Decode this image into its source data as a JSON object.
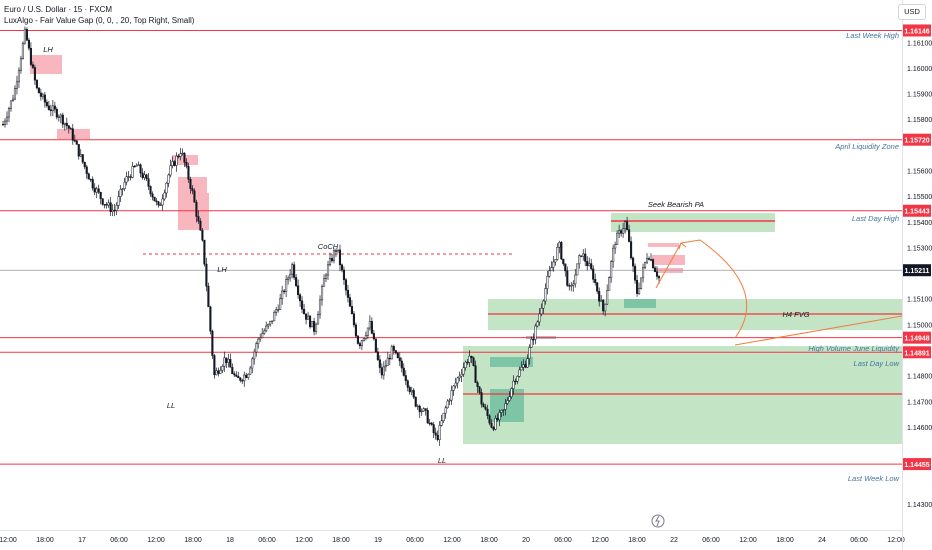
{
  "header": {
    "title": "Euro / U.S. Dollar · 15 · FXCM",
    "indicator": "LuxAlgo - Fair Value Gap (0, 0, , 20, Top Right, Small)"
  },
  "currency": "USD",
  "timezone_icon": "clock-lightning-icon",
  "colors": {
    "level_line": "#f23645",
    "bull_fvg": "#a5d6a7",
    "bull_fvg_dark": "#66bb9a",
    "bear_fvg": "#f7a9b4",
    "candle": "#131722",
    "annotation_text": "#42749e",
    "arrow": "#f47c3c",
    "price_tag": "#131722"
  },
  "chart_data": {
    "type": "candlestick",
    "symbol": "EURUSD",
    "interval": "15",
    "ylim": [
      1.1428,
      1.1622
    ],
    "y_ticks": [
      "1.16100",
      "1.16000",
      "1.15900",
      "1.15800",
      "1.15600",
      "1.15500",
      "1.15400",
      "1.15300",
      "1.15100",
      "1.15000",
      "1.14800",
      "1.14700",
      "1.14600",
      "1.14300"
    ],
    "x_ticks": [
      "12:00",
      "18:00",
      "17",
      "06:00",
      "12:00",
      "18:00",
      "18",
      "06:00",
      "12:00",
      "18:00",
      "19",
      "06:00",
      "12:00",
      "18:00",
      "20",
      "06:00",
      "12:00",
      "18:00",
      "22",
      "06:00",
      "12:00",
      "18:00",
      "24",
      "06:00",
      "12:00"
    ],
    "levels": [
      {
        "name": "Last Week High",
        "price": 1.16146,
        "label": "1.16146"
      },
      {
        "name": "April Liquidity Zone",
        "price": 1.1572,
        "label": "1.15720"
      },
      {
        "name": "Last Day High",
        "price": 1.15443,
        "label": "1.15443"
      },
      {
        "name": "High Volume June Liquidity",
        "price": 1.14948,
        "label": "1.14948"
      },
      {
        "name": "Last Day Low",
        "price": 1.14891,
        "label": "1.14891"
      },
      {
        "name": "Last Week Low",
        "price": 1.14455,
        "label": "1.14455"
      }
    ],
    "current_price": {
      "price": 1.15211,
      "label": "1.15211"
    },
    "close_path": [
      1.1578,
      1.159,
      1.1614,
      1.1592,
      1.1585,
      1.1582,
      1.1576,
      1.1565,
      1.1555,
      1.1548,
      1.1544,
      1.1556,
      1.1562,
      1.1555,
      1.1545,
      1.156,
      1.1568,
      1.1552,
      1.153,
      1.148,
      1.1487,
      1.1478,
      1.1481,
      1.1495,
      1.15,
      1.151,
      1.1523,
      1.1505,
      1.1498,
      1.152,
      1.153,
      1.151,
      1.1492,
      1.15,
      1.148,
      1.149,
      1.1482,
      1.147,
      1.1465,
      1.1455,
      1.147,
      1.148,
      1.1488,
      1.147,
      1.146,
      1.1466,
      1.1479,
      1.1485,
      1.15,
      1.1518,
      1.1531,
      1.1512,
      1.1528,
      1.152,
      1.1505,
      1.1532,
      1.154,
      1.1512,
      1.1528,
      1.1518
    ],
    "close_path_note": "",
    "text_annotations": [
      "LH",
      "LH",
      "LL",
      "LL",
      "CoCH",
      "Seek Bearish PA",
      "H4 FVG"
    ]
  }
}
